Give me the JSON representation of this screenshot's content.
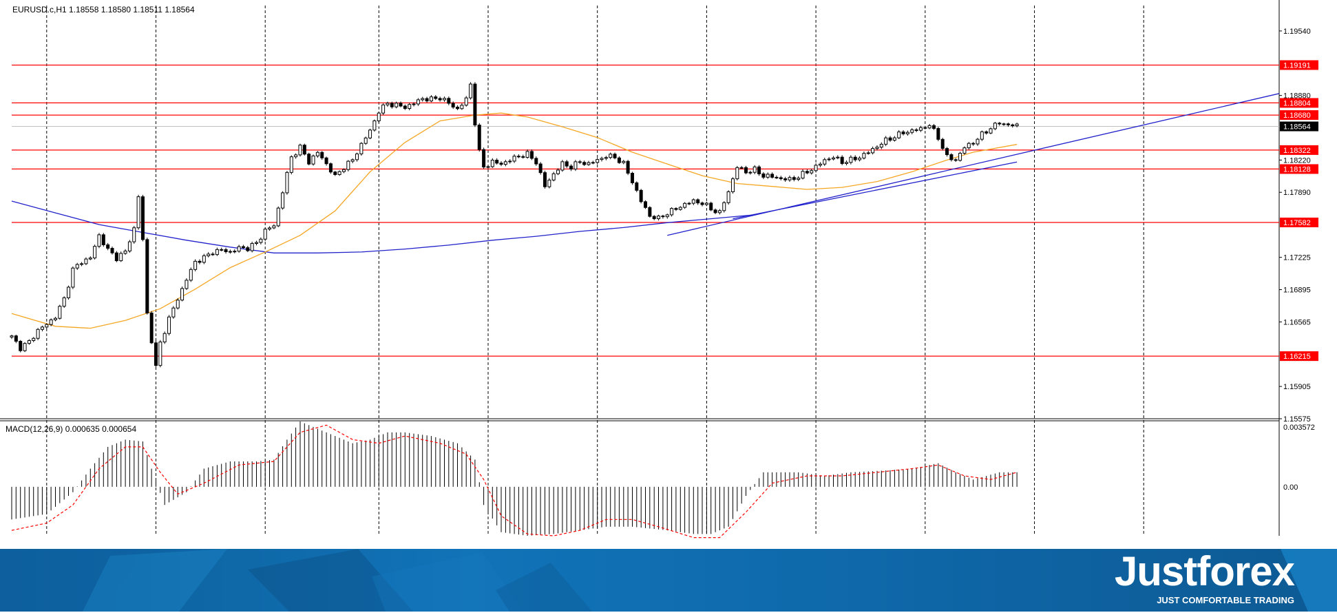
{
  "header": {
    "symbol_line": "EURUSD.c,H1  1.18558 1.18580 1.18511 1.18564",
    "macd_label": "MACD(12,26,9) 0.000635 0.000654"
  },
  "brand": {
    "logo": "Justforex",
    "tagline": "JUST COMFORTABLE TRADING"
  },
  "colors": {
    "level_line": "#ff0000",
    "level_tag_bg": "#ff0000",
    "current_tag_bg": "#000000",
    "ma_fast": "#f5a623",
    "ma_slow": "#2222cc",
    "trendline": "#2222cc",
    "macd_signal": "#ff0000",
    "candle": "#000000",
    "footer_bg": "#1173b8"
  },
  "chart_data": [
    {
      "type": "candlestick",
      "symbol": "EURUSD.c",
      "timeframe": "H1",
      "ylim": [
        1.15575,
        1.198
      ],
      "price_ticks": [
        "1.19540",
        "1.18880",
        "1.18220",
        "1.17890",
        "1.17225",
        "1.16895",
        "1.16565",
        "1.15905",
        "1.15575"
      ],
      "current_price": "1.18564",
      "levels": [
        "1.19191",
        "1.18804",
        "1.18680",
        "1.18322",
        "1.18128",
        "1.17582",
        "1.16215"
      ],
      "close_path": [
        [
          0,
          1.1641
        ],
        [
          2,
          1.163
        ],
        [
          4,
          1.1636
        ],
        [
          6,
          1.1648
        ],
        [
          8,
          1.1654
        ],
        [
          10,
          1.1662
        ],
        [
          12,
          1.168
        ],
        [
          14,
          1.171
        ],
        [
          16,
          1.1718
        ],
        [
          18,
          1.1722
        ],
        [
          20,
          1.1745
        ],
        [
          22,
          1.173
        ],
        [
          24,
          1.1722
        ],
        [
          26,
          1.1728
        ],
        [
          28,
          1.1752
        ],
        [
          29,
          1.1785
        ],
        [
          30,
          1.174
        ],
        [
          31,
          1.1665
        ],
        [
          33,
          1.161
        ],
        [
          34,
          1.1635
        ],
        [
          36,
          1.166
        ],
        [
          38,
          1.168
        ],
        [
          40,
          1.17
        ],
        [
          42,
          1.1718
        ],
        [
          44,
          1.1722
        ],
        [
          46,
          1.1728
        ],
        [
          48,
          1.173
        ],
        [
          50,
          1.1728
        ],
        [
          52,
          1.1732
        ],
        [
          54,
          1.1732
        ],
        [
          56,
          1.1737
        ],
        [
          58,
          1.175
        ],
        [
          60,
          1.1755
        ],
        [
          62,
          1.179
        ],
        [
          64,
          1.1825
        ],
        [
          66,
          1.1835
        ],
        [
          68,
          1.182
        ],
        [
          70,
          1.183
        ],
        [
          72,
          1.1818
        ],
        [
          74,
          1.1805
        ],
        [
          76,
          1.1815
        ],
        [
          78,
          1.1822
        ],
        [
          80,
          1.1838
        ],
        [
          82,
          1.1852
        ],
        [
          84,
          1.1872
        ],
        [
          86,
          1.188
        ],
        [
          88,
          1.1878
        ],
        [
          90,
          1.1876
        ],
        [
          92,
          1.188
        ],
        [
          94,
          1.1885
        ],
        [
          96,
          1.1884
        ],
        [
          98,
          1.1886
        ],
        [
          100,
          1.188
        ],
        [
          102,
          1.1874
        ],
        [
          104,
          1.1884
        ],
        [
          105,
          1.19
        ],
        [
          106,
          1.186
        ],
        [
          107,
          1.183
        ],
        [
          108,
          1.1815
        ],
        [
          110,
          1.182
        ],
        [
          112,
          1.1818
        ],
        [
          114,
          1.1822
        ],
        [
          116,
          1.1826
        ],
        [
          118,
          1.1828
        ],
        [
          120,
          1.182
        ],
        [
          122,
          1.1795
        ],
        [
          124,
          1.1808
        ],
        [
          126,
          1.1818
        ],
        [
          128,
          1.1815
        ],
        [
          130,
          1.182
        ],
        [
          132,
          1.1818
        ],
        [
          134,
          1.1822
        ],
        [
          136,
          1.1826
        ],
        [
          138,
          1.1825
        ],
        [
          140,
          1.1818
        ],
        [
          142,
          1.18
        ],
        [
          144,
          1.178
        ],
        [
          146,
          1.1765
        ],
        [
          148,
          1.1762
        ],
        [
          150,
          1.1768
        ],
        [
          152,
          1.1772
        ],
        [
          154,
          1.1777
        ],
        [
          156,
          1.178
        ],
        [
          158,
          1.1778
        ],
        [
          160,
          1.1772
        ],
        [
          162,
          1.1768
        ],
        [
          164,
          1.179
        ],
        [
          166,
          1.1815
        ],
        [
          168,
          1.181
        ],
        [
          170,
          1.1812
        ],
        [
          172,
          1.1806
        ],
        [
          174,
          1.1805
        ],
        [
          176,
          1.1803
        ],
        [
          178,
          1.1802
        ],
        [
          180,
          1.1805
        ],
        [
          182,
          1.181
        ],
        [
          184,
          1.1815
        ],
        [
          186,
          1.1822
        ],
        [
          188,
          1.1825
        ],
        [
          190,
          1.182
        ],
        [
          192,
          1.1822
        ],
        [
          194,
          1.1825
        ],
        [
          196,
          1.183
        ],
        [
          198,
          1.1836
        ],
        [
          200,
          1.1842
        ],
        [
          202,
          1.1846
        ],
        [
          204,
          1.185
        ],
        [
          206,
          1.1852
        ],
        [
          208,
          1.1854
        ],
        [
          210,
          1.1858
        ],
        [
          212,
          1.1845
        ],
        [
          214,
          1.1825
        ],
        [
          216,
          1.1822
        ],
        [
          218,
          1.1835
        ],
        [
          220,
          1.184
        ],
        [
          222,
          1.1848
        ],
        [
          224,
          1.1855
        ],
        [
          226,
          1.186
        ],
        [
          228,
          1.1858
        ],
        [
          230,
          1.1857
        ]
      ],
      "ma_fast": [
        [
          0,
          1.1665
        ],
        [
          10,
          1.1652
        ],
        [
          18,
          1.165
        ],
        [
          26,
          1.1658
        ],
        [
          34,
          1.167
        ],
        [
          42,
          1.169
        ],
        [
          50,
          1.1712
        ],
        [
          58,
          1.1728
        ],
        [
          66,
          1.1745
        ],
        [
          74,
          1.177
        ],
        [
          82,
          1.181
        ],
        [
          90,
          1.184
        ],
        [
          98,
          1.1862
        ],
        [
          106,
          1.1868
        ],
        [
          112,
          1.187
        ],
        [
          118,
          1.1866
        ],
        [
          126,
          1.1856
        ],
        [
          134,
          1.1845
        ],
        [
          142,
          1.183
        ],
        [
          150,
          1.1818
        ],
        [
          158,
          1.1806
        ],
        [
          166,
          1.1798
        ],
        [
          174,
          1.1795
        ],
        [
          182,
          1.1792
        ],
        [
          190,
          1.1794
        ],
        [
          198,
          1.18
        ],
        [
          206,
          1.181
        ],
        [
          214,
          1.1822
        ],
        [
          220,
          1.183
        ],
        [
          230,
          1.1838
        ]
      ],
      "ma_slow": [
        [
          0,
          1.178
        ],
        [
          10,
          1.1768
        ],
        [
          20,
          1.1756
        ],
        [
          30,
          1.1748
        ],
        [
          40,
          1.174
        ],
        [
          50,
          1.1733
        ],
        [
          60,
          1.1727
        ],
        [
          70,
          1.1727
        ],
        [
          80,
          1.1728
        ],
        [
          90,
          1.1731
        ],
        [
          100,
          1.1735
        ],
        [
          110,
          1.174
        ],
        [
          120,
          1.1744
        ],
        [
          130,
          1.1749
        ],
        [
          140,
          1.1753
        ],
        [
          150,
          1.1758
        ],
        [
          160,
          1.1762
        ],
        [
          170,
          1.1766
        ]
      ],
      "trendlines": [
        [
          [
            150,
            1.1745
          ],
          [
            290,
            1.189
          ]
        ],
        [
          [
            165,
            1.1762
          ],
          [
            230,
            1.182
          ]
        ]
      ]
    },
    {
      "type": "bar",
      "indicator": "MACD(12,26,9)",
      "tick_labels": [
        "0.003572",
        "0.00"
      ],
      "ylim": [
        -0.0027,
        0.0036
      ],
      "histogram": [
        [
          0,
          -0.0018
        ],
        [
          8,
          -0.0015
        ],
        [
          14,
          -0.0003
        ],
        [
          18,
          0.001
        ],
        [
          22,
          0.0022
        ],
        [
          26,
          0.0026
        ],
        [
          30,
          0.0025
        ],
        [
          32,
          0.001
        ],
        [
          35,
          -0.001
        ],
        [
          40,
          -0.0003
        ],
        [
          44,
          0.001
        ],
        [
          50,
          0.0014
        ],
        [
          56,
          0.0014
        ],
        [
          60,
          0.0015
        ],
        [
          63,
          0.0026
        ],
        [
          66,
          0.0036
        ],
        [
          70,
          0.0032
        ],
        [
          74,
          0.0028
        ],
        [
          78,
          0.0024
        ],
        [
          82,
          0.0026
        ],
        [
          86,
          0.003
        ],
        [
          90,
          0.003
        ],
        [
          96,
          0.0028
        ],
        [
          102,
          0.0024
        ],
        [
          106,
          0.0015
        ],
        [
          108,
          -0.001
        ],
        [
          112,
          -0.0025
        ],
        [
          118,
          -0.0027
        ],
        [
          124,
          -0.0026
        ],
        [
          130,
          -0.0024
        ],
        [
          136,
          -0.0022
        ],
        [
          142,
          -0.0022
        ],
        [
          150,
          -0.0024
        ],
        [
          156,
          -0.0026
        ],
        [
          160,
          -0.0026
        ],
        [
          164,
          -0.0022
        ],
        [
          168,
          -0.0005
        ],
        [
          172,
          0.0008
        ],
        [
          180,
          0.0008
        ],
        [
          186,
          0.0006
        ],
        [
          192,
          0.0008
        ],
        [
          200,
          0.0009
        ],
        [
          206,
          0.001
        ],
        [
          212,
          0.0013
        ],
        [
          216,
          0.0008
        ],
        [
          220,
          0.0004
        ],
        [
          226,
          0.0008
        ],
        [
          230,
          0.0008
        ]
      ],
      "signal": [
        [
          0,
          -0.0024
        ],
        [
          8,
          -0.002
        ],
        [
          14,
          -0.001
        ],
        [
          20,
          0.001
        ],
        [
          26,
          0.0022
        ],
        [
          30,
          0.0022
        ],
        [
          34,
          0.0008
        ],
        [
          38,
          -0.0004
        ],
        [
          44,
          0.0002
        ],
        [
          52,
          0.0012
        ],
        [
          60,
          0.0014
        ],
        [
          66,
          0.003
        ],
        [
          72,
          0.0034
        ],
        [
          78,
          0.0026
        ],
        [
          84,
          0.0024
        ],
        [
          90,
          0.0028
        ],
        [
          98,
          0.0024
        ],
        [
          104,
          0.0018
        ],
        [
          108,
          0.0004
        ],
        [
          112,
          -0.0016
        ],
        [
          118,
          -0.0026
        ],
        [
          124,
          -0.0027
        ],
        [
          130,
          -0.0024
        ],
        [
          136,
          -0.0018
        ],
        [
          142,
          -0.0018
        ],
        [
          148,
          -0.0022
        ],
        [
          156,
          -0.0028
        ],
        [
          162,
          -0.0028
        ],
        [
          168,
          -0.0014
        ],
        [
          174,
          0.0002
        ],
        [
          182,
          0.0006
        ],
        [
          190,
          0.0006
        ],
        [
          198,
          0.0008
        ],
        [
          206,
          0.001
        ],
        [
          212,
          0.0012
        ],
        [
          218,
          0.0006
        ],
        [
          224,
          0.0004
        ],
        [
          230,
          0.0008
        ]
      ]
    }
  ]
}
